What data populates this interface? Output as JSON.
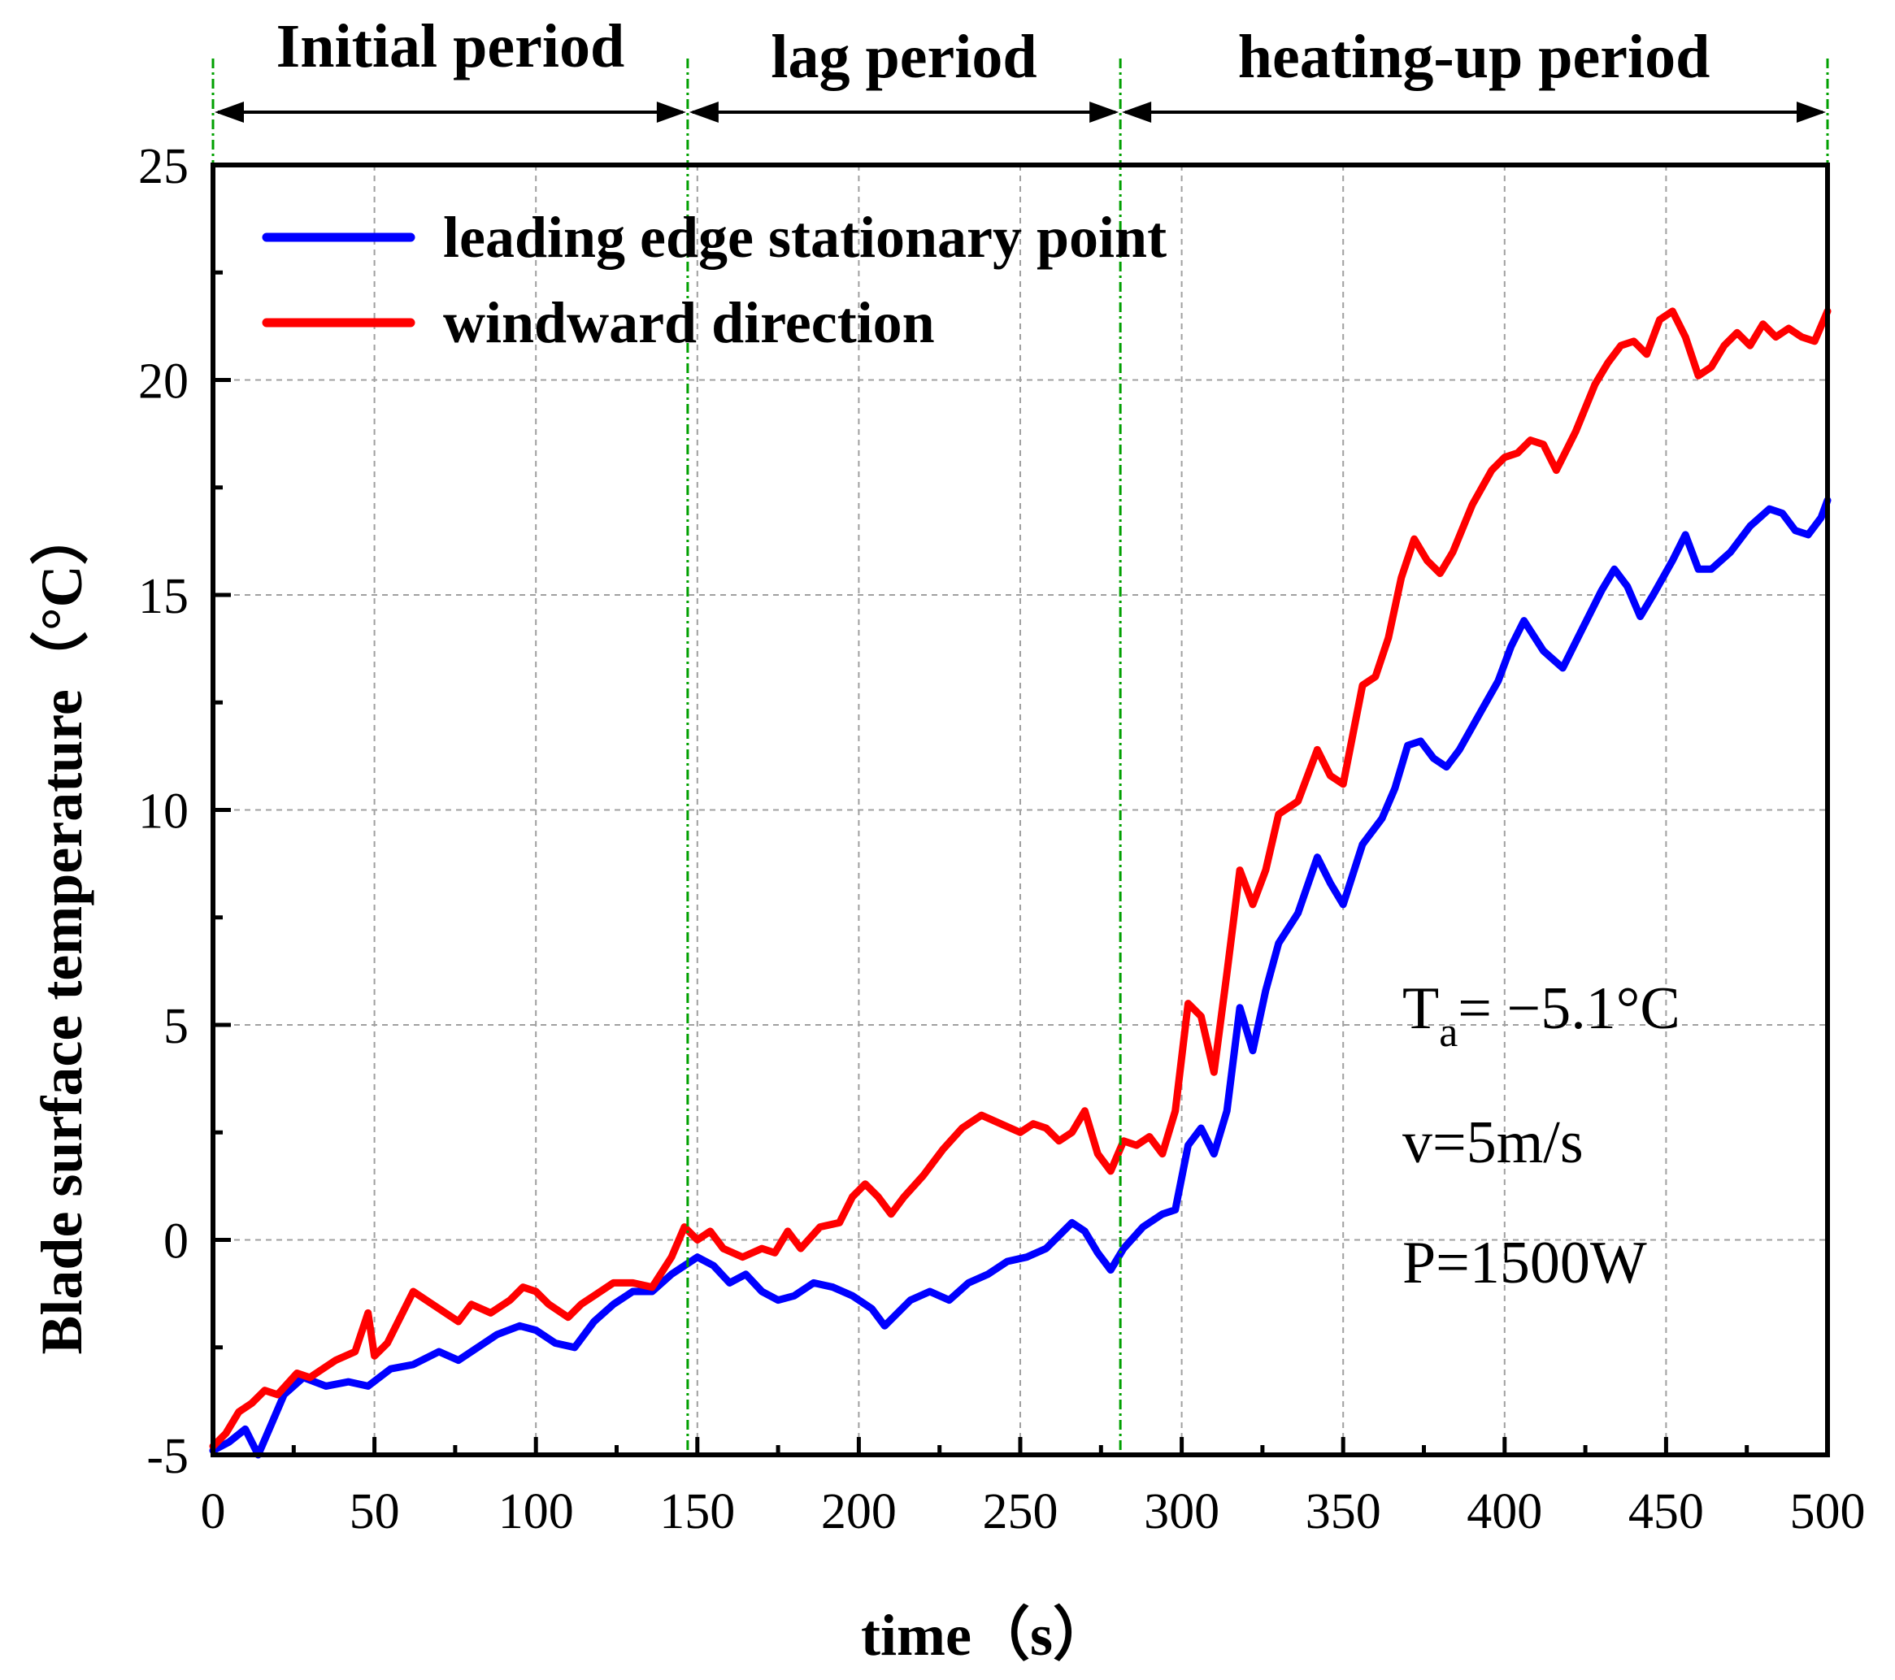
{
  "chart_data": {
    "type": "line",
    "title": "",
    "xlabel": "time（s）",
    "ylabel": "Blade surface temperature（°C）",
    "xlim": [
      0,
      500
    ],
    "ylim": [
      -5,
      25
    ],
    "x_ticks": [
      "0",
      "50",
      "100",
      "150",
      "200",
      "250",
      "300",
      "350",
      "400",
      "450",
      "500"
    ],
    "y_ticks": [
      "-5",
      "0",
      "5",
      "10",
      "15",
      "20",
      "25"
    ],
    "x_tick_values": [
      0,
      50,
      100,
      150,
      200,
      250,
      300,
      350,
      400,
      450,
      500
    ],
    "y_tick_values": [
      -5,
      0,
      5,
      10,
      15,
      20,
      25
    ],
    "grid": true,
    "legend_position": "top-left",
    "periods": [
      {
        "label": "Initial period",
        "start": 0,
        "end": 147
      },
      {
        "label": "lag period",
        "start": 147,
        "end": 281
      },
      {
        "label": "heating-up period",
        "start": 281,
        "end": 500
      }
    ],
    "period_boundaries": [
      0,
      147,
      281,
      500
    ],
    "annotations": {
      "ta_main": "T",
      "ta_sub": "a",
      "ta_rest": "= −5.1°C",
      "velocity": "v=5m/s",
      "power": "P=1500W"
    },
    "series": [
      {
        "name": "leading edge stationary point",
        "color": "#0000ff",
        "x": [
          0,
          5,
          10,
          14,
          18,
          22,
          28,
          35,
          42,
          48,
          55,
          62,
          70,
          76,
          82,
          88,
          95,
          100,
          106,
          112,
          118,
          124,
          130,
          136,
          142,
          146,
          150,
          155,
          160,
          165,
          170,
          175,
          180,
          186,
          192,
          198,
          204,
          208,
          212,
          216,
          222,
          228,
          234,
          240,
          246,
          252,
          258,
          262,
          266,
          270,
          274,
          278,
          282,
          288,
          294,
          298,
          302,
          306,
          310,
          314,
          318,
          322,
          326,
          330,
          336,
          342,
          346,
          350,
          356,
          362,
          366,
          370,
          374,
          378,
          382,
          386,
          392,
          398,
          402,
          406,
          412,
          418,
          424,
          430,
          434,
          438,
          442,
          446,
          452,
          456,
          460,
          464,
          470,
          476,
          482,
          486,
          490,
          494,
          498,
          500
        ],
        "values": [
          -4.9,
          -4.7,
          -4.4,
          -5.0,
          -4.3,
          -3.6,
          -3.2,
          -3.4,
          -3.3,
          -3.4,
          -3.0,
          -2.9,
          -2.6,
          -2.8,
          -2.5,
          -2.2,
          -2.0,
          -2.1,
          -2.4,
          -2.5,
          -1.9,
          -1.5,
          -1.2,
          -1.2,
          -0.8,
          -0.6,
          -0.4,
          -0.6,
          -1.0,
          -0.8,
          -1.2,
          -1.4,
          -1.3,
          -1.0,
          -1.1,
          -1.3,
          -1.6,
          -2.0,
          -1.7,
          -1.4,
          -1.2,
          -1.4,
          -1.0,
          -0.8,
          -0.5,
          -0.4,
          -0.2,
          0.1,
          0.4,
          0.2,
          -0.3,
          -0.7,
          -0.2,
          0.3,
          0.6,
          0.7,
          2.2,
          2.6,
          2.0,
          3.0,
          5.4,
          4.4,
          5.8,
          6.9,
          7.6,
          8.9,
          8.3,
          7.8,
          9.2,
          9.8,
          10.5,
          11.5,
          11.6,
          11.2,
          11.0,
          11.4,
          12.2,
          13.0,
          13.8,
          14.4,
          13.7,
          13.3,
          14.2,
          15.1,
          15.6,
          15.2,
          14.5,
          15.0,
          15.8,
          16.4,
          15.6,
          15.6,
          16.0,
          16.6,
          17.0,
          16.9,
          16.5,
          16.4,
          16.8,
          17.2
        ]
      },
      {
        "name": "windward direction",
        "color": "#ff0000",
        "x": [
          0,
          4,
          8,
          12,
          16,
          20,
          26,
          30,
          34,
          38,
          44,
          48,
          50,
          54,
          58,
          62,
          66,
          70,
          76,
          80,
          86,
          92,
          96,
          100,
          104,
          110,
          114,
          118,
          124,
          130,
          136,
          142,
          146,
          150,
          154,
          158,
          164,
          170,
          174,
          178,
          182,
          188,
          194,
          198,
          202,
          206,
          210,
          214,
          220,
          226,
          232,
          238,
          244,
          250,
          254,
          258,
          262,
          266,
          270,
          274,
          278,
          282,
          286,
          290,
          294,
          298,
          302,
          306,
          310,
          314,
          318,
          322,
          326,
          330,
          336,
          342,
          346,
          350,
          356,
          360,
          364,
          368,
          372,
          376,
          380,
          384,
          390,
          396,
          400,
          404,
          408,
          412,
          416,
          422,
          428,
          432,
          436,
          440,
          444,
          448,
          452,
          456,
          460,
          464,
          468,
          472,
          476,
          480,
          484,
          488,
          492,
          496,
          500
        ],
        "values": [
          -4.8,
          -4.5,
          -4.0,
          -3.8,
          -3.5,
          -3.6,
          -3.1,
          -3.2,
          -3.0,
          -2.8,
          -2.6,
          -1.7,
          -2.7,
          -2.4,
          -1.8,
          -1.2,
          -1.4,
          -1.6,
          -1.9,
          -1.5,
          -1.7,
          -1.4,
          -1.1,
          -1.2,
          -1.5,
          -1.8,
          -1.5,
          -1.3,
          -1.0,
          -1.0,
          -1.1,
          -0.4,
          0.3,
          0.0,
          0.2,
          -0.2,
          -0.4,
          -0.2,
          -0.3,
          0.2,
          -0.2,
          0.3,
          0.4,
          1.0,
          1.3,
          1.0,
          0.6,
          1.0,
          1.5,
          2.1,
          2.6,
          2.9,
          2.7,
          2.5,
          2.7,
          2.6,
          2.3,
          2.5,
          3.0,
          2.0,
          1.6,
          2.3,
          2.2,
          2.4,
          2.0,
          3.0,
          5.5,
          5.2,
          3.9,
          6.2,
          8.6,
          7.8,
          8.6,
          9.9,
          10.2,
          11.4,
          10.8,
          10.6,
          12.9,
          13.1,
          14.0,
          15.4,
          16.3,
          15.8,
          15.5,
          16.0,
          17.1,
          17.9,
          18.2,
          18.3,
          18.6,
          18.5,
          17.9,
          18.8,
          19.9,
          20.4,
          20.8,
          20.9,
          20.6,
          21.4,
          21.6,
          21.0,
          20.1,
          20.3,
          20.8,
          21.1,
          20.8,
          21.3,
          21.0,
          21.2,
          21.0,
          20.9,
          21.6
        ]
      }
    ]
  }
}
